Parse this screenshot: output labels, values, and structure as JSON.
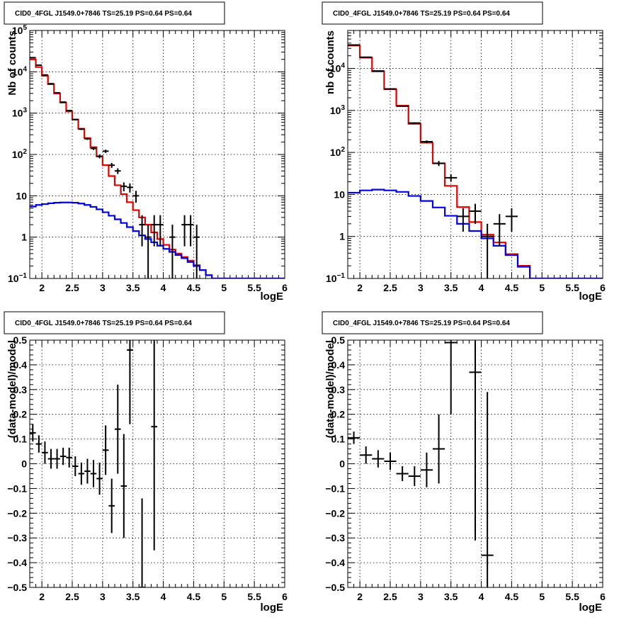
{
  "panels": [
    {
      "id": "counts-all",
      "title": "CID0_4FGL J1549.0+7846 TS=25.19 PS=0.64 PS=0.64",
      "chart_data": {
        "type": "step-histogram",
        "xlabel": "logE",
        "ylabel": "Nb of counts",
        "xlim": [
          1.8,
          6.0
        ],
        "ylim": [
          0.1,
          100000
        ],
        "yscale": "log",
        "grid": true,
        "xticks": [
          2,
          2.5,
          3,
          3.5,
          4,
          4.5,
          5,
          5.5,
          6
        ],
        "xtick_labels": [
          "2",
          "2.5",
          "3",
          "3.5",
          "4",
          "4.5",
          "5",
          "5.5",
          "6"
        ],
        "yticks": [
          0.1,
          1,
          10,
          100,
          1000,
          10000,
          100000
        ],
        "ytick_labels": [
          "10^-1",
          "1",
          "10",
          "10^2",
          "10^3",
          "10^4",
          "10^5"
        ],
        "bin_edges": [
          1.8,
          1.9,
          2.0,
          2.1,
          2.2,
          2.3,
          2.4,
          2.5,
          2.6,
          2.7,
          2.8,
          2.9,
          3.0,
          3.1,
          3.2,
          3.3,
          3.4,
          3.5,
          3.6,
          3.7,
          3.8,
          3.9,
          4.0,
          4.1,
          4.2,
          4.3,
          4.4,
          4.5,
          4.6,
          4.7,
          4.8,
          4.9,
          5.0,
          5.1,
          5.2,
          5.3,
          5.4,
          5.5,
          5.6,
          5.7,
          5.8,
          5.9,
          6.0
        ],
        "series": [
          {
            "color": "#e00000",
            "values": [
              20000,
              13000,
              8000,
              5000,
              3000,
              1800,
              1100,
              700,
              420,
              250,
              150,
              90,
              55,
              30,
              18,
              11,
              7,
              4.5,
              3,
              2,
              1.3,
              0.9,
              0.65,
              0.5,
              0.4,
              0.33,
              0.27,
              0.21,
              0.16,
              0.12,
              0.1,
              0.1,
              0.1,
              0.1,
              0.1,
              0.1,
              0.1,
              0.1,
              0.1,
              0.1,
              0.1,
              0.1
            ]
          },
          {
            "color": "#0000e0",
            "values": [
              5.5,
              6.0,
              6.3,
              6.6,
              6.8,
              6.9,
              6.9,
              6.8,
              6.5,
              6.0,
              5.4,
              4.7,
              4.0,
              3.3,
              2.7,
              2.2,
              1.75,
              1.4,
              1.1,
              0.9,
              0.75,
              0.62,
              0.52,
              0.44,
              0.37,
              0.31,
              0.25,
              0.2,
              0.16,
              0.12,
              0.1,
              0.1,
              0.1,
              0.1,
              0.1,
              0.1,
              0.1,
              0.1,
              0.1,
              0.1,
              0.1,
              0.1
            ]
          }
        ],
        "data_points": {
          "x": [
            1.85,
            1.95,
            2.05,
            2.15,
            2.25,
            2.35,
            2.45,
            2.55,
            2.65,
            2.75,
            2.85,
            2.95,
            3.05,
            3.15,
            3.25,
            3.35,
            3.45,
            3.55,
            3.65,
            3.75,
            3.85,
            3.95,
            4.15,
            4.35,
            4.45,
            4.55
          ],
          "y": [
            22000,
            14500,
            8400,
            5150,
            3100,
            1850,
            1150,
            700,
            410,
            240,
            140,
            90,
            120,
            55,
            40,
            17,
            16,
            10,
            2,
            1,
            2,
            2,
            1,
            2,
            2,
            1
          ],
          "yerr": [
            150,
            120,
            90,
            70,
            55,
            43,
            34,
            26,
            20,
            15,
            12,
            9.5,
            11,
            7.5,
            6.3,
            4.1,
            4.0,
            3.2,
            1.4,
            1.0,
            1.4,
            1.4,
            1.0,
            1.4,
            1.4,
            1.0
          ],
          "xerr": 0.05
        }
      }
    },
    {
      "id": "counts-type",
      "title": "CID0_4FGL J1549.0+7846 TS=25.19 PS=0.64 PS=0.64",
      "chart_data": {
        "type": "step-histogram",
        "xlabel": "logE",
        "ylabel": "nb of counts",
        "xlim": [
          1.8,
          6.0
        ],
        "ylim": [
          0.1,
          80000
        ],
        "yscale": "log",
        "grid": true,
        "xticks": [
          2,
          2.5,
          3,
          3.5,
          4,
          4.5,
          5,
          5.5,
          6
        ],
        "xtick_labels": [
          "2",
          "2.5",
          "3",
          "3.5",
          "4",
          "4.5",
          "5",
          "5.5",
          "6"
        ],
        "yticks": [
          0.1,
          1,
          10,
          100,
          1000,
          10000
        ],
        "ytick_labels": [
          "10^-1",
          "1",
          "10",
          "10^2",
          "10^3",
          "10^4"
        ],
        "bin_edges": [
          1.8,
          2.0,
          2.2,
          2.4,
          2.6,
          2.8,
          3.0,
          3.2,
          3.4,
          3.6,
          3.8,
          4.0,
          4.2,
          4.4,
          4.6,
          4.8,
          5.0,
          5.2,
          5.4,
          5.6,
          5.8,
          6.0
        ],
        "series": [
          {
            "color": "#e00000",
            "values": [
              35000,
              18000,
              8500,
              3200,
              1300,
              480,
              170,
              55,
              16,
              5,
              2.2,
              1.1,
              0.72,
              0.38,
              0.2,
              0.1,
              0.1,
              0.1,
              0.1,
              0.1,
              0.1
            ]
          },
          {
            "color": "#0000e0",
            "values": [
              11,
              12.5,
              13,
              12.5,
              11.5,
              9.2,
              7.0,
              4.9,
              3.1,
              2.0,
              1.35,
              0.9,
              0.6,
              0.36,
              0.19,
              0.1,
              0.1,
              0.1,
              0.1,
              0.1,
              0.1
            ]
          }
        ],
        "data_points": {
          "x": [
            1.9,
            2.1,
            2.3,
            2.5,
            2.7,
            2.9,
            3.1,
            3.3,
            3.5,
            3.7,
            3.9,
            4.1,
            4.3,
            4.5
          ],
          "y": [
            36000,
            18500,
            8700,
            3250,
            1260,
            500,
            180,
            55,
            25,
            3,
            4,
            1,
            2,
            3
          ],
          "yerr": [
            190,
            136,
            93,
            57,
            35,
            22,
            13,
            7.4,
            5,
            1.7,
            2,
            1,
            1.4,
            1.7
          ],
          "xerr": 0.1
        }
      }
    },
    {
      "id": "resid-all",
      "title": "CID0_4FGL J1549.0+7846 TS=25.19 PS=0.64 PS=0.64",
      "chart_data": {
        "type": "scatter-errorbars",
        "xlabel": "logE",
        "ylabel": "(data-model)/model",
        "xlim": [
          1.8,
          6.0
        ],
        "ylim": [
          -0.5,
          0.5
        ],
        "yscale": "linear",
        "grid": true,
        "xticks": [
          2,
          2.5,
          3,
          3.5,
          4,
          4.5,
          5,
          5.5,
          6
        ],
        "xtick_labels": [
          "2",
          "2.5",
          "3",
          "3.5",
          "4",
          "4.5",
          "5",
          "5.5",
          "6"
        ],
        "yticks": [
          -0.5,
          -0.4,
          -0.3,
          -0.2,
          -0.1,
          0,
          0.1,
          0.2,
          0.3,
          0.4,
          0.5
        ],
        "ytick_labels": [
          "−0.5",
          "−0.4",
          "−0.3",
          "−0.2",
          "−0.1",
          "0",
          "0.1",
          "0.2",
          "0.3",
          "0.4",
          "0.5"
        ],
        "data_points": {
          "x": [
            1.85,
            1.95,
            2.05,
            2.15,
            2.25,
            2.35,
            2.45,
            2.55,
            2.65,
            2.75,
            2.85,
            2.95,
            3.05,
            3.15,
            3.25,
            3.35,
            3.45,
            3.65,
            3.85
          ],
          "y": [
            0.125,
            0.08,
            0.045,
            0.02,
            0.02,
            0.03,
            0.025,
            -0.01,
            -0.04,
            -0.03,
            -0.04,
            -0.06,
            0.055,
            -0.17,
            0.14,
            -0.09,
            0.46,
            -0.5,
            0.15
          ],
          "yerr": [
            0.035,
            0.035,
            0.045,
            0.04,
            0.04,
            0.035,
            0.04,
            0.04,
            0.045,
            0.05,
            0.055,
            0.065,
            0.1,
            0.11,
            0.18,
            0.21,
            0.3,
            0.36,
            0.5
          ],
          "xerr": 0.05
        }
      }
    },
    {
      "id": "resid-type",
      "title": "CID0_4FGL J1549.0+7846 TS=25.19 PS=0.64 PS=0.64",
      "chart_data": {
        "type": "scatter-errorbars",
        "xlabel": "logE",
        "ylabel": "(data-model)/model",
        "xlim": [
          1.8,
          6.0
        ],
        "ylim": [
          -0.5,
          0.5
        ],
        "yscale": "linear",
        "grid": true,
        "xticks": [
          2,
          2.5,
          3,
          3.5,
          4,
          4.5,
          5,
          5.5,
          6
        ],
        "xtick_labels": [
          "2",
          "2.5",
          "3",
          "3.5",
          "4",
          "4.5",
          "5",
          "5.5",
          "6"
        ],
        "yticks": [
          -0.5,
          -0.4,
          -0.3,
          -0.2,
          -0.1,
          0,
          0.1,
          0.2,
          0.3,
          0.4,
          0.5
        ],
        "ytick_labels": [
          "−0.5",
          "−0.4",
          "−0.3",
          "−0.2",
          "−0.1",
          "0",
          "0.1",
          "0.2",
          "0.3",
          "0.4",
          "0.5"
        ],
        "data_points": {
          "x": [
            1.9,
            2.1,
            2.3,
            2.5,
            2.7,
            2.9,
            3.1,
            3.3,
            3.5,
            3.9,
            4.1
          ],
          "y": [
            0.105,
            0.035,
            0.02,
            0.01,
            -0.04,
            -0.05,
            -0.025,
            0.06,
            0.49,
            0.37,
            -0.37
          ],
          "yerr": [
            0.025,
            0.035,
            0.035,
            0.035,
            0.03,
            0.04,
            0.07,
            0.14,
            0.29,
            0.68,
            0.66
          ],
          "xerr": 0.1
        }
      }
    }
  ]
}
